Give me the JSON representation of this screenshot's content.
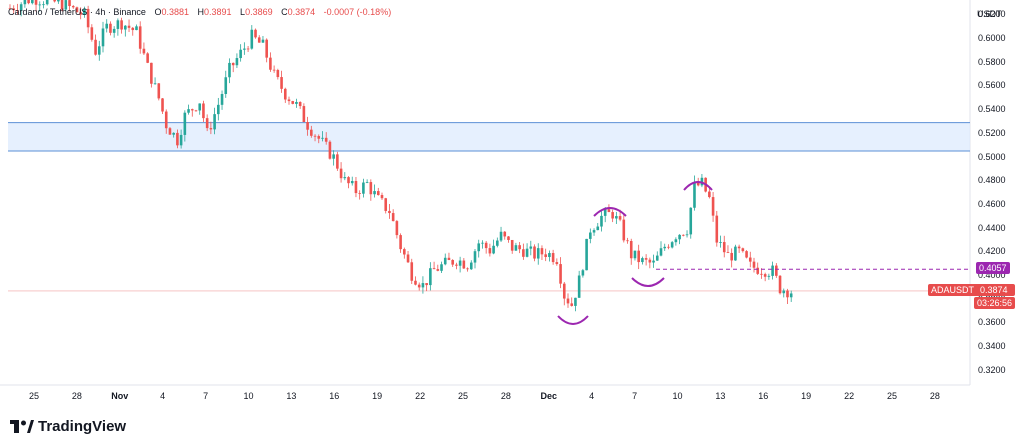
{
  "header": {
    "symbol": "Cardano / TetherUS · 4h · Binance",
    "o_label": "O",
    "o_value": "0.3881",
    "h_label": "H",
    "h_value": "0.3891",
    "l_label": "L",
    "l_value": "0.3869",
    "c_label": "C",
    "c_value": "0.3874",
    "change": "-0.0007 (-0.18%)"
  },
  "axis": {
    "unit": "USDT"
  },
  "branding": {
    "logo_text": "TradingView"
  },
  "colors": {
    "up": "#26a69a",
    "down": "#ef5350",
    "zone_fill": "#dbeafe",
    "zone_line": "#5b8fd6",
    "pattern": "#9c27b0"
  },
  "chart_data": {
    "type": "candlestick",
    "yticks": [
      "0.6200",
      "0.6000",
      "0.5800",
      "0.5600",
      "0.5400",
      "0.5200",
      "0.5000",
      "0.4800",
      "0.4600",
      "0.4400",
      "0.4200",
      "0.4000",
      "0.3800",
      "0.3600",
      "0.3400",
      "0.3200"
    ],
    "ylim": [
      0.308,
      0.633
    ],
    "xticks": [
      {
        "label": "25"
      },
      {
        "label": "28"
      },
      {
        "label": "Nov",
        "bold": true
      },
      {
        "label": "4"
      },
      {
        "label": "7"
      },
      {
        "label": "10"
      },
      {
        "label": "13"
      },
      {
        "label": "16"
      },
      {
        "label": "19"
      },
      {
        "label": "22"
      },
      {
        "label": "25"
      },
      {
        "label": "28"
      },
      {
        "label": "Dec",
        "bold": true
      },
      {
        "label": "4"
      },
      {
        "label": "7"
      },
      {
        "label": "10"
      },
      {
        "label": "13"
      },
      {
        "label": "16"
      },
      {
        "label": "19"
      },
      {
        "label": "22"
      },
      {
        "label": "25"
      },
      {
        "label": "28"
      }
    ],
    "close_path": [
      [
        0,
        0.626
      ],
      [
        6,
        0.635
      ],
      [
        14,
        0.63
      ],
      [
        20,
        0.62
      ],
      [
        23,
        0.59
      ],
      [
        26,
        0.61
      ],
      [
        30,
        0.614
      ],
      [
        34,
        0.606
      ],
      [
        37,
        0.576
      ],
      [
        40,
        0.55
      ],
      [
        42,
        0.528
      ],
      [
        45,
        0.515
      ],
      [
        47,
        0.535
      ],
      [
        51,
        0.548
      ],
      [
        53,
        0.52
      ],
      [
        56,
        0.545
      ],
      [
        59,
        0.574
      ],
      [
        62,
        0.588
      ],
      [
        65,
        0.602
      ],
      [
        68,
        0.594
      ],
      [
        71,
        0.569
      ],
      [
        74,
        0.554
      ],
      [
        77,
        0.544
      ],
      [
        80,
        0.528
      ],
      [
        84,
        0.512
      ],
      [
        87,
        0.5
      ],
      [
        90,
        0.48
      ],
      [
        93,
        0.472
      ],
      [
        96,
        0.478
      ],
      [
        99,
        0.464
      ],
      [
        102,
        0.455
      ],
      [
        105,
        0.425
      ],
      [
        108,
        0.402
      ],
      [
        111,
        0.392
      ],
      [
        114,
        0.405
      ],
      [
        117,
        0.41
      ],
      [
        120,
        0.414
      ],
      [
        123,
        0.41
      ],
      [
        126,
        0.428
      ],
      [
        129,
        0.422
      ],
      [
        132,
        0.434
      ],
      [
        135,
        0.424
      ],
      [
        138,
        0.422
      ],
      [
        141,
        0.418
      ],
      [
        144,
        0.42
      ],
      [
        147,
        0.415
      ],
      [
        149,
        0.384
      ],
      [
        151,
        0.376
      ],
      [
        153,
        0.396
      ],
      [
        156,
        0.44
      ],
      [
        159,
        0.45
      ],
      [
        162,
        0.453
      ],
      [
        164,
        0.442
      ],
      [
        167,
        0.418
      ],
      [
        170,
        0.412
      ],
      [
        173,
        0.41
      ],
      [
        176,
        0.425
      ],
      [
        179,
        0.435
      ],
      [
        182,
        0.44
      ],
      [
        184,
        0.475
      ],
      [
        186,
        0.478
      ],
      [
        188,
        0.465
      ],
      [
        190,
        0.43
      ],
      [
        193,
        0.417
      ],
      [
        196,
        0.42
      ],
      [
        199,
        0.408
      ],
      [
        202,
        0.406
      ],
      [
        205,
        0.404
      ],
      [
        207,
        0.39
      ],
      [
        210,
        0.387
      ]
    ],
    "n_candles": 211,
    "zone": {
      "top": 0.5295,
      "bottom": 0.5055
    },
    "resistance": {
      "value": 0.4057,
      "label": "0.4057"
    },
    "current": {
      "value": 0.3874,
      "symbol": "ADAUSDT",
      "price": "0.3874",
      "countdown": "03:26:56"
    }
  }
}
